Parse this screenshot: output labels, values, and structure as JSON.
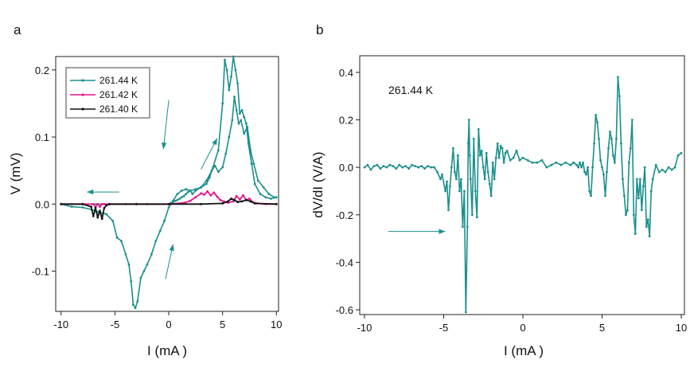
{
  "panels": {
    "a": {
      "letter": "a"
    },
    "b": {
      "letter": "b"
    }
  },
  "colors": {
    "teal": "#1a8f8c",
    "pink": "#e4168a",
    "black": "#111111",
    "axis": "#222222"
  },
  "chart_data": [
    {
      "type": "line",
      "panel": "a",
      "title": "",
      "xlabel": "I  (mA )",
      "ylabel": "V (mV)",
      "xlim": [
        -10.5,
        10.2
      ],
      "ylim": [
        -0.16,
        0.22
      ],
      "xticks": [
        -10,
        -5,
        0,
        5,
        10
      ],
      "xtick_labels": [
        "-10",
        "-5",
        "0",
        "5",
        "10"
      ],
      "yticks": [
        -0.1,
        0.0,
        0.1,
        0.2
      ],
      "ytick_labels": [
        "-0.1",
        "0.0",
        "0.1",
        "0.2"
      ],
      "legend_position": "top-left",
      "series": [
        {
          "name": "261.44 K",
          "color": "#1a8f8c",
          "x": [
            -10,
            -9,
            -8,
            -7.2,
            -6.5,
            -5.8,
            -5.2,
            -4.8,
            -4.4,
            -4.0,
            -3.7,
            -3.5,
            -3.3,
            -3.1,
            -2.9,
            -2.6,
            -2.3,
            -2.0,
            -1.6,
            -1.2,
            -0.8,
            -0.4,
            0.0,
            0.4,
            0.8,
            1.2,
            1.6,
            2.0,
            2.5,
            3.0,
            3.5,
            3.8,
            4.0,
            4.3,
            4.6,
            5.0,
            5.3,
            5.6,
            5.9,
            6.1,
            6.3,
            6.5,
            6.7,
            7.0,
            7.3,
            7.6,
            7.9,
            8.3,
            8.8,
            9.3,
            9.8,
            10,
            9.5,
            9.0,
            8.5,
            8.0,
            7.7,
            7.4,
            7.2,
            7.0,
            6.8,
            6.6,
            6.4,
            6.2,
            6.0,
            5.8,
            5.6,
            5.4,
            5.2,
            5.0,
            4.6,
            4.0,
            3.5,
            3.0,
            2.5,
            2.2,
            2.0,
            1.8,
            1.6,
            1.4,
            1.2,
            1.0,
            0.8,
            0.6,
            0.4,
            0.2,
            0.0,
            -2,
            -4,
            -6,
            -8,
            -10
          ],
          "y": [
            0.0,
            -0.004,
            -0.005,
            -0.008,
            -0.012,
            -0.015,
            -0.025,
            -0.05,
            -0.055,
            -0.075,
            -0.09,
            -0.115,
            -0.15,
            -0.155,
            -0.145,
            -0.11,
            -0.1,
            -0.09,
            -0.075,
            -0.055,
            -0.04,
            -0.025,
            -0.005,
            0.005,
            0.015,
            0.02,
            0.022,
            0.02,
            0.022,
            0.025,
            0.03,
            0.04,
            0.05,
            0.057,
            0.048,
            0.055,
            0.075,
            0.1,
            0.125,
            0.16,
            0.14,
            0.12,
            0.125,
            0.105,
            0.115,
            0.08,
            0.06,
            0.035,
            0.025,
            0.015,
            0.01,
            0.01,
            0.008,
            0.01,
            0.015,
            0.03,
            0.06,
            0.09,
            0.12,
            0.13,
            0.14,
            0.135,
            0.18,
            0.2,
            0.22,
            0.19,
            0.17,
            0.2,
            0.215,
            0.15,
            0.08,
            0.05,
            0.035,
            0.025,
            0.02,
            0.015,
            0.02,
            0.018,
            0.015,
            0.012,
            0.01,
            0.008,
            0.006,
            0.005,
            0.003,
            0.002,
            0.0,
            0.0,
            0.0,
            0.0,
            0.0,
            0.0
          ]
        },
        {
          "name": "261.42 K",
          "color": "#e4168a",
          "x": [
            -10,
            -8,
            -7.0,
            -6.8,
            -6.6,
            -6.4,
            -6.2,
            -6.0,
            -5.5,
            -3,
            0,
            1.5,
            2.0,
            2.5,
            3.0,
            3.3,
            3.6,
            3.9,
            4.2,
            4.5,
            4.8,
            5.1,
            5.5,
            6.0,
            6.3,
            6.6,
            6.9,
            7.2,
            7.5,
            7.8,
            8.2,
            9,
            10
          ],
          "y": [
            0.0,
            0.0,
            0.0,
            -0.004,
            0.0,
            -0.004,
            0.0,
            0.0,
            0.0,
            0.0,
            0.0,
            0.002,
            0.005,
            0.01,
            0.016,
            0.014,
            0.019,
            0.013,
            0.017,
            0.011,
            0.006,
            0.004,
            0.002,
            0.004,
            0.012,
            0.007,
            0.013,
            0.006,
            0.008,
            0.003,
            0.001,
            0.0,
            0.0
          ]
        },
        {
          "name": "261.40 K",
          "color": "#111111",
          "x": [
            -10,
            -8,
            -7.2,
            -7.0,
            -6.8,
            -6.6,
            -6.4,
            -6.2,
            -6.0,
            -5.8,
            -5.5,
            -3,
            0,
            3,
            5,
            5.5,
            5.8,
            6.1,
            6.4,
            6.8,
            7.2,
            7.6,
            8,
            10
          ],
          "y": [
            0.0,
            0.0,
            -0.004,
            -0.018,
            -0.006,
            -0.02,
            -0.01,
            -0.022,
            -0.006,
            -0.002,
            0.0,
            0.0,
            0.0,
            0.0,
            0.001,
            0.004,
            0.008,
            0.006,
            0.003,
            0.004,
            0.006,
            0.004,
            0.001,
            0.0
          ]
        }
      ],
      "arrows": [
        {
          "from": [
            -4.6,
            0.018
          ],
          "to": [
            -7.6,
            0.018
          ]
        },
        {
          "from": [
            -0.3,
            -0.112
          ],
          "to": [
            0.4,
            -0.06
          ]
        },
        {
          "from": [
            3.0,
            0.052
          ],
          "to": [
            4.5,
            0.098
          ]
        },
        {
          "from": [
            0.0,
            0.155
          ],
          "to": [
            -0.5,
            0.082
          ]
        }
      ]
    },
    {
      "type": "line",
      "panel": "b",
      "title": "",
      "xlabel": "I  (mA )",
      "ylabel": "dV/dI (V/A)",
      "xlim": [
        -10.3,
        10.2
      ],
      "ylim": [
        -0.62,
        0.47
      ],
      "xticks": [
        -10,
        -5,
        0,
        5,
        10
      ],
      "xtick_labels": [
        "-10",
        "-5",
        "0",
        "5",
        "10"
      ],
      "yticks": [
        -0.6,
        -0.4,
        -0.2,
        0.0,
        0.2,
        0.4
      ],
      "ytick_labels": [
        "-0.6",
        "-0.4",
        "-0.2",
        "0.0",
        "0.2",
        "0.4"
      ],
      "annotation": "261.44 K",
      "series": [
        {
          "name": "dV/dI 261.44 K",
          "color": "#1a8f8c",
          "x": [
            -10.0,
            -9.8,
            -9.6,
            -9.4,
            -9.2,
            -9.0,
            -8.8,
            -8.6,
            -8.4,
            -8.2,
            -8.0,
            -7.8,
            -7.6,
            -7.4,
            -7.2,
            -7.0,
            -6.8,
            -6.6,
            -6.4,
            -6.2,
            -6.0,
            -5.8,
            -5.6,
            -5.4,
            -5.2,
            -5.1,
            -4.9,
            -4.8,
            -4.7,
            -4.6,
            -4.5,
            -4.4,
            -4.3,
            -4.2,
            -4.1,
            -4.0,
            -3.9,
            -3.8,
            -3.7,
            -3.6,
            -3.5,
            -3.45,
            -3.4,
            -3.35,
            -3.3,
            -3.2,
            -3.1,
            -3.0,
            -2.9,
            -2.8,
            -2.7,
            -2.6,
            -2.5,
            -2.4,
            -2.3,
            -2.2,
            -2.1,
            -2.0,
            -1.9,
            -1.8,
            -1.7,
            -1.6,
            -1.5,
            -1.4,
            -1.3,
            -1.2,
            -1.1,
            -1.0,
            -0.8,
            -0.6,
            -0.4,
            -0.2,
            0.0,
            0.3,
            0.6,
            0.9,
            1.2,
            1.5,
            1.8,
            2.1,
            2.4,
            2.7,
            3.0,
            3.2,
            3.4,
            3.5,
            3.6,
            3.7,
            3.8,
            3.9,
            4.0,
            4.1,
            4.2,
            4.3,
            4.4,
            4.5,
            4.6,
            4.7,
            4.8,
            4.9,
            5.0,
            5.1,
            5.2,
            5.3,
            5.4,
            5.5,
            5.6,
            5.7,
            5.8,
            5.9,
            6.0,
            6.1,
            6.2,
            6.3,
            6.4,
            6.5,
            6.6,
            6.7,
            6.8,
            6.9,
            7.0,
            7.1,
            7.2,
            7.3,
            7.4,
            7.5,
            7.6,
            7.7,
            7.8,
            7.9,
            8.0,
            8.1,
            8.2,
            8.4,
            8.6,
            8.8,
            9.0,
            9.2,
            9.4,
            9.6,
            9.8,
            10.0
          ],
          "y": [
            0.0,
            0.01,
            -0.01,
            0.005,
            0.01,
            -0.005,
            0.005,
            0.0,
            0.01,
            0.005,
            -0.005,
            0.01,
            0.0,
            0.005,
            -0.005,
            0.01,
            0.005,
            0.0,
            0.005,
            -0.005,
            0.005,
            0.0,
            0.0,
            -0.02,
            -0.05,
            -0.03,
            -0.1,
            -0.06,
            -0.18,
            -0.08,
            0.0,
            0.08,
            -0.02,
            -0.05,
            0.05,
            -0.1,
            -0.05,
            -0.25,
            -0.1,
            -0.61,
            -0.25,
            0.1,
            0.2,
            0.05,
            -0.05,
            -0.2,
            0.12,
            -0.1,
            -0.21,
            0.16,
            0.05,
            0.07,
            0.0,
            -0.05,
            0.06,
            -0.02,
            -0.07,
            -0.12,
            0.02,
            -0.05,
            0.04,
            0.1,
            0.04,
            0.09,
            0.08,
            0.02,
            0.06,
            0.07,
            0.03,
            0.04,
            0.07,
            0.03,
            0.04,
            0.03,
            0.02,
            0.02,
            0.03,
            0.0,
            0.01,
            0.02,
            0.01,
            0.02,
            0.01,
            0.02,
            0.01,
            0.0,
            0.02,
            0.0,
            0.02,
            -0.02,
            -0.03,
            0.0,
            -0.1,
            -0.12,
            0.0,
            0.1,
            0.22,
            0.19,
            0.12,
            0.03,
            0.0,
            -0.03,
            -0.12,
            -0.02,
            0.08,
            0.15,
            0.12,
            0.05,
            0.02,
            0.12,
            0.38,
            0.3,
            0.1,
            -0.05,
            -0.12,
            -0.2,
            -0.18,
            0.02,
            0.08,
            0.2,
            -0.2,
            -0.28,
            -0.05,
            -0.13,
            -0.05,
            -0.18,
            -0.08,
            0.0,
            -0.25,
            -0.22,
            -0.29,
            -0.1,
            -0.05,
            0.01,
            -0.02,
            -0.01,
            -0.02,
            0.0,
            -0.01,
            0.0,
            0.05,
            0.06
          ]
        }
      ],
      "arrows": [
        {
          "from": [
            -8.5,
            -0.27
          ],
          "to": [
            -4.9,
            -0.27
          ]
        }
      ]
    }
  ]
}
